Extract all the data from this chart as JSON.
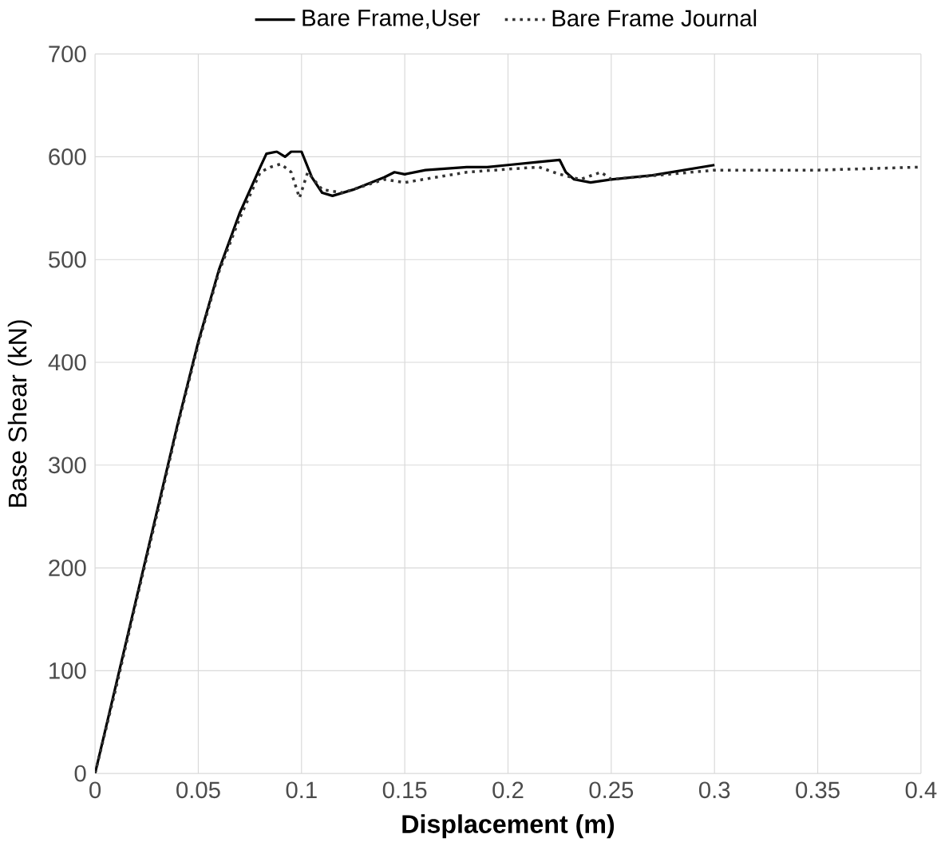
{
  "chart_data": {
    "type": "line",
    "xlabel": "Displacement (m)",
    "ylabel": "Base Shear (kN)",
    "xlim": [
      0,
      0.4
    ],
    "ylim": [
      0,
      700
    ],
    "xticks": [
      0,
      0.05,
      0.1,
      0.15,
      0.2,
      0.25,
      0.3,
      0.35,
      0.4
    ],
    "yticks": [
      0,
      100,
      200,
      300,
      400,
      500,
      600,
      700
    ],
    "grid": true,
    "legend": "top",
    "marker": "none",
    "series": [
      {
        "name": "Bare Frame,User",
        "color": "#000000",
        "line_style": "solid",
        "x": [
          0,
          0.01,
          0.02,
          0.03,
          0.04,
          0.05,
          0.06,
          0.07,
          0.08,
          0.083,
          0.088,
          0.092,
          0.095,
          0.1,
          0.105,
          0.11,
          0.115,
          0.125,
          0.14,
          0.145,
          0.15,
          0.16,
          0.18,
          0.19,
          0.2,
          0.215,
          0.225,
          0.228,
          0.232,
          0.24,
          0.25,
          0.27,
          0.3
        ],
        "values": [
          0,
          85,
          170,
          255,
          340,
          420,
          490,
          545,
          590,
          603,
          605,
          600,
          605,
          605,
          580,
          565,
          562,
          568,
          580,
          585,
          583,
          587,
          590,
          590,
          592,
          595,
          597,
          585,
          578,
          575,
          578,
          582,
          592
        ]
      },
      {
        "name": "Bare Frame Journal",
        "color": "#333333",
        "line_style": "dotted",
        "x": [
          0,
          0.01,
          0.02,
          0.03,
          0.04,
          0.05,
          0.06,
          0.07,
          0.08,
          0.085,
          0.09,
          0.095,
          0.099,
          0.103,
          0.11,
          0.12,
          0.14,
          0.15,
          0.18,
          0.2,
          0.215,
          0.225,
          0.235,
          0.245,
          0.25,
          0.3,
          0.35,
          0.4
        ],
        "values": [
          0,
          82,
          168,
          252,
          338,
          418,
          488,
          540,
          585,
          590,
          593,
          585,
          560,
          585,
          568,
          565,
          578,
          575,
          585,
          588,
          590,
          583,
          578,
          585,
          578,
          587,
          587,
          590
        ]
      }
    ]
  }
}
